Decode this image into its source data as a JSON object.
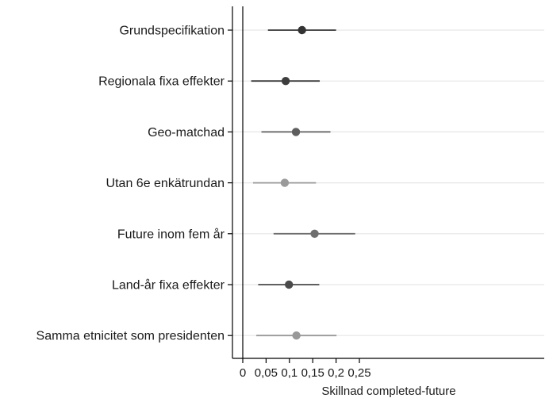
{
  "chart_data": {
    "type": "scatter",
    "subtype": "coefficient-plot",
    "orientation": "horizontal",
    "xlabel": "Skillnad completed-future",
    "xlim": [
      0,
      0.25
    ],
    "xticks": [
      0,
      0.05,
      0.1,
      0.15,
      0.2,
      0.25
    ],
    "xtick_labels": [
      "0",
      "0,05",
      "0,1",
      "0,15",
      "0,2",
      "0,25"
    ],
    "grid": "horizontal lines at each category",
    "rows": [
      {
        "label": "Grundspecifikation",
        "estimate": 0.127,
        "ci_low": 0.054,
        "ci_high": 0.2,
        "color": "#333333"
      },
      {
        "label": "Regionala fixa effekter",
        "estimate": 0.092,
        "ci_low": 0.018,
        "ci_high": 0.165,
        "color": "#3d3d3d"
      },
      {
        "label": "Geo-matchad",
        "estimate": 0.114,
        "ci_low": 0.04,
        "ci_high": 0.188,
        "color": "#5e5e5e"
      },
      {
        "label": "Utan 6e enkätrundan",
        "estimate": 0.09,
        "ci_low": 0.022,
        "ci_high": 0.157,
        "color": "#9a9a9a"
      },
      {
        "label": "Future inom fem år",
        "estimate": 0.154,
        "ci_low": 0.066,
        "ci_high": 0.241,
        "color": "#6e6e6e"
      },
      {
        "label": "Land-år fixa effekter",
        "estimate": 0.099,
        "ci_low": 0.033,
        "ci_high": 0.164,
        "color": "#4a4a4a"
      },
      {
        "label": "Samma etnicitet som presidenten",
        "estimate": 0.115,
        "ci_low": 0.029,
        "ci_high": 0.201,
        "color": "#999999"
      }
    ]
  }
}
